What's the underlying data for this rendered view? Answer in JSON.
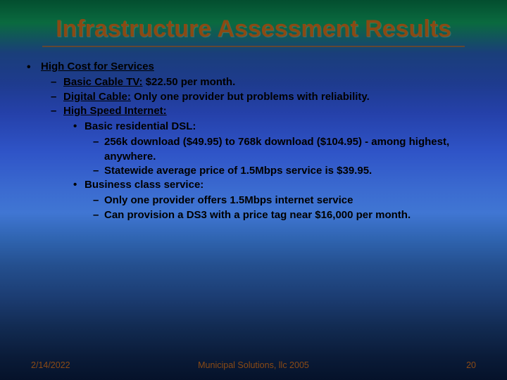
{
  "title": "Infrastructure Assessment Results",
  "colors": {
    "title_color": "#8a4a14",
    "footer_color": "#8a4a14",
    "body_text": "#000000"
  },
  "typography": {
    "title_font": "Comic Sans MS",
    "body_font": "Tahoma",
    "title_fontsize_pt": 26,
    "body_fontsize_pt": 11
  },
  "bullets": {
    "heading": "High Cost for Services",
    "items": [
      {
        "label": "Basic Cable TV:",
        "text": " $22.50 per month."
      },
      {
        "label": "Digital Cable:",
        "text": " Only one provider but problems with reliability."
      },
      {
        "label": "High Speed Internet:",
        "text": "",
        "sub": [
          {
            "text": "Basic residential DSL:",
            "sub": [
              {
                "text": "256k download ($49.95) to 768k download ($104.95) - among highest, anywhere."
              },
              {
                "text": "Statewide average price of 1.5Mbps service is $39.95."
              }
            ]
          },
          {
            "text": "Business class service:",
            "sub": [
              {
                "text": "Only one provider offers 1.5Mbps internet service"
              },
              {
                "text": "Can provision a DS3 with a price tag near $16,000 per month."
              }
            ]
          }
        ]
      }
    ]
  },
  "footer": {
    "date": "2/14/2022",
    "center": "Municipal Solutions, llc 2005",
    "page": "20"
  }
}
